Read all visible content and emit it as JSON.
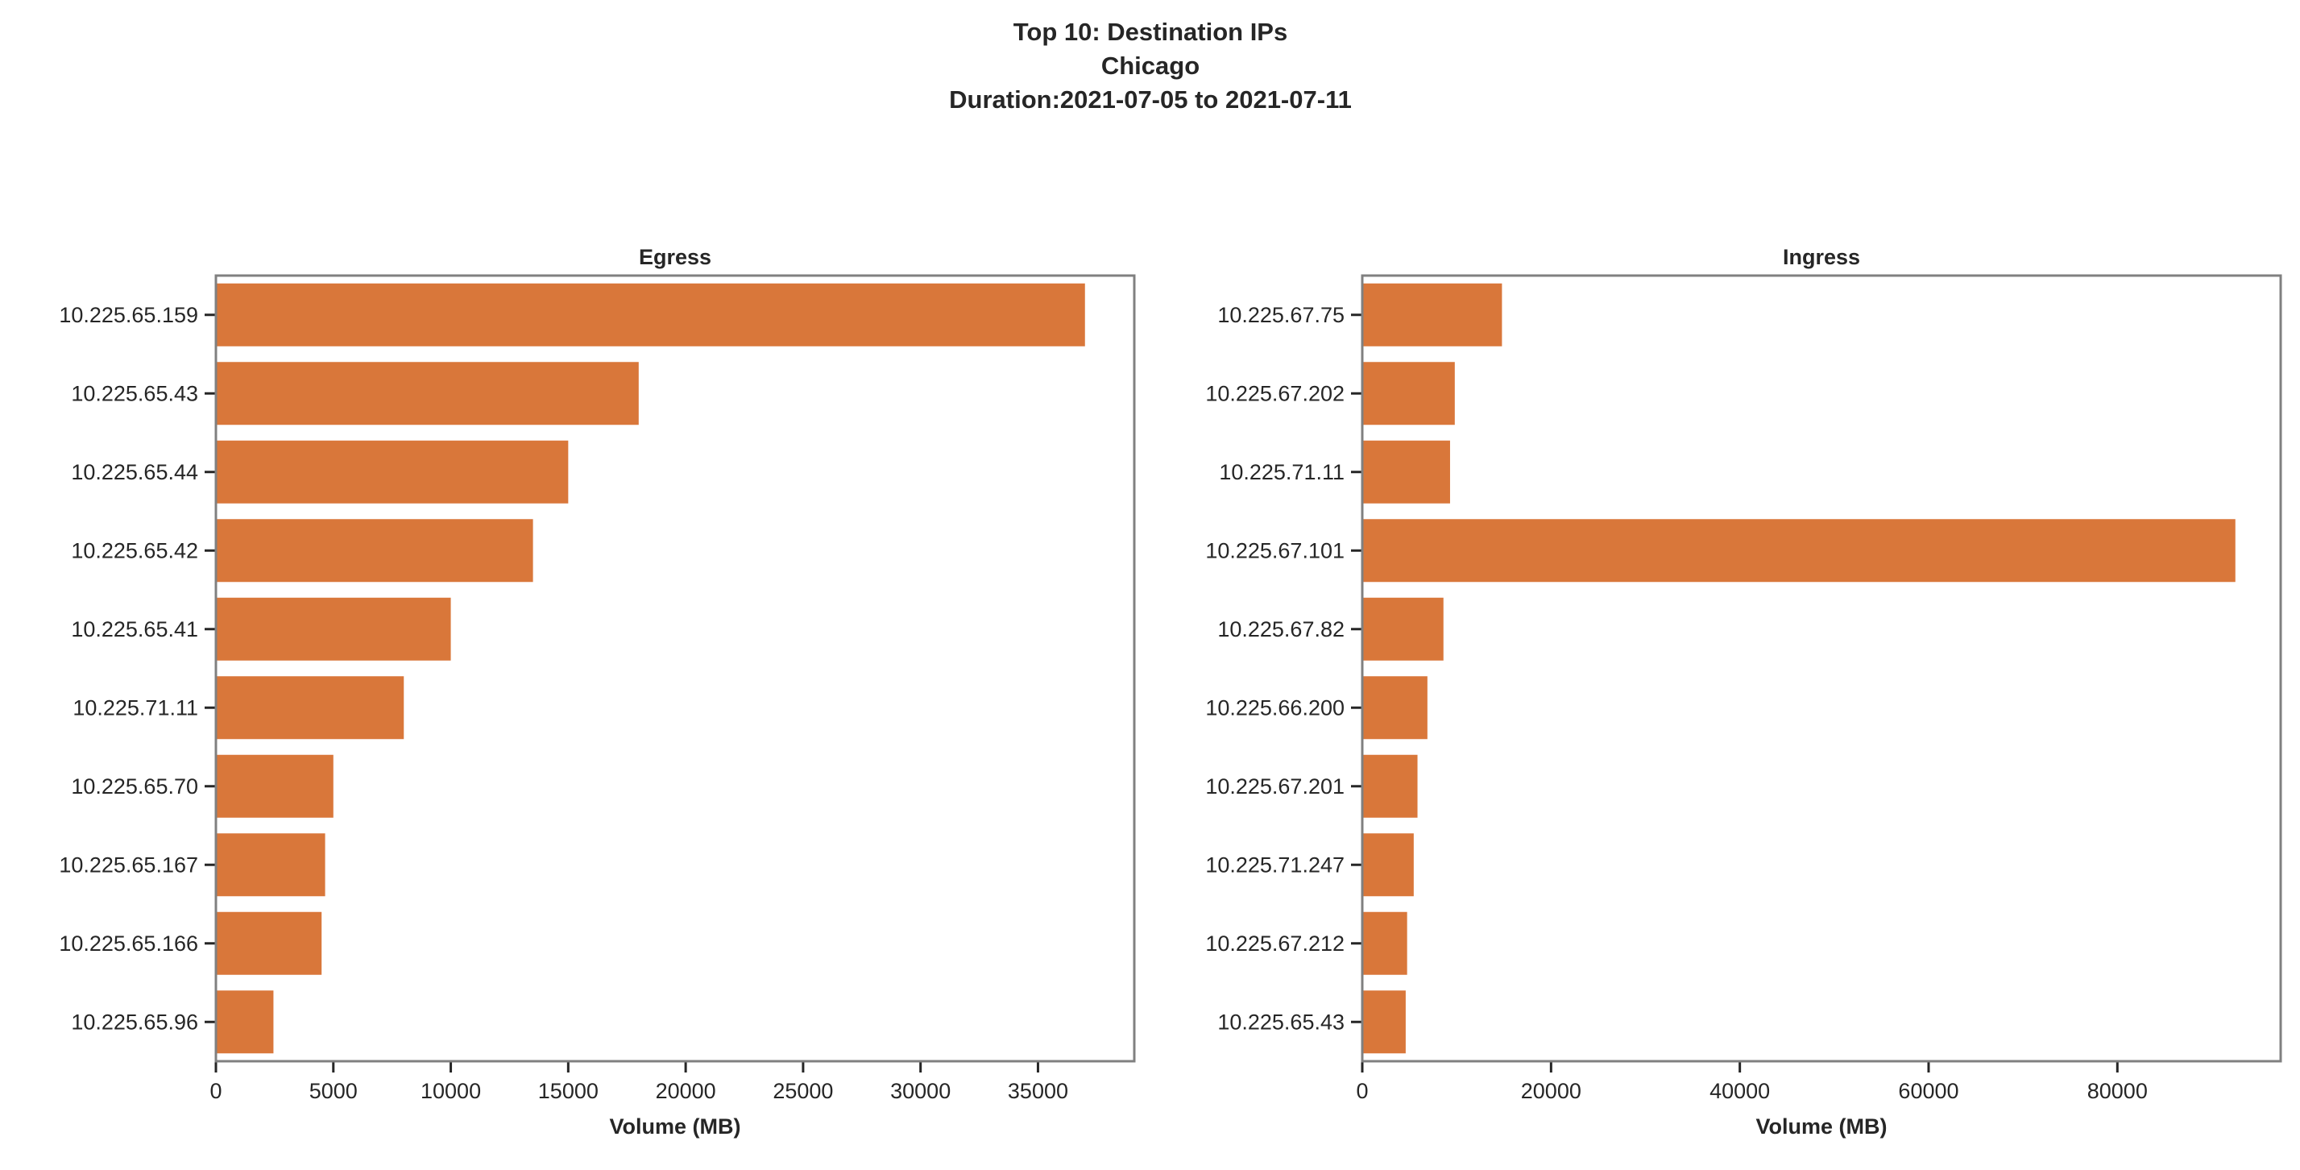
{
  "chart_data": [
    {
      "type": "bar",
      "orientation": "horizontal",
      "title": "Egress",
      "xlabel": "Volume (MB)",
      "ylabel": "",
      "categories": [
        "10.225.65.159",
        "10.225.65.43",
        "10.225.65.44",
        "10.225.65.42",
        "10.225.65.41",
        "10.225.71.11",
        "10.225.65.70",
        "10.225.65.167",
        "10.225.65.166",
        "10.225.65.96"
      ],
      "values": [
        37000,
        18000,
        15000,
        13500,
        10000,
        8000,
        5000,
        4650,
        4500,
        2450
      ],
      "xlim": [
        0,
        39100
      ],
      "xticks": [
        0,
        5000,
        10000,
        15000,
        20000,
        25000,
        30000,
        35000
      ],
      "grid": false,
      "color": "#D9773A"
    },
    {
      "type": "bar",
      "orientation": "horizontal",
      "title": "Ingress",
      "xlabel": "Volume (MB)",
      "ylabel": "",
      "categories": [
        "10.225.67.75",
        "10.225.67.202",
        "10.225.71.11",
        "10.225.67.101",
        "10.225.67.82",
        "10.225.66.200",
        "10.225.67.201",
        "10.225.71.247",
        "10.225.67.212",
        "10.225.65.43"
      ],
      "values": [
        14800,
        9800,
        9300,
        92500,
        8600,
        6900,
        5850,
        5450,
        4750,
        4600
      ],
      "xlim": [
        0,
        97300
      ],
      "xticks": [
        0,
        20000,
        40000,
        60000,
        80000
      ],
      "grid": false,
      "color": "#D9773A"
    }
  ],
  "suptitle": [
    "Top 10: Destination IPs",
    "Chicago",
    "Duration:2021-07-05 to 2021-07-11"
  ],
  "colors": {
    "bar": "#D9773A",
    "spine": "#808080",
    "text": "#262626"
  }
}
